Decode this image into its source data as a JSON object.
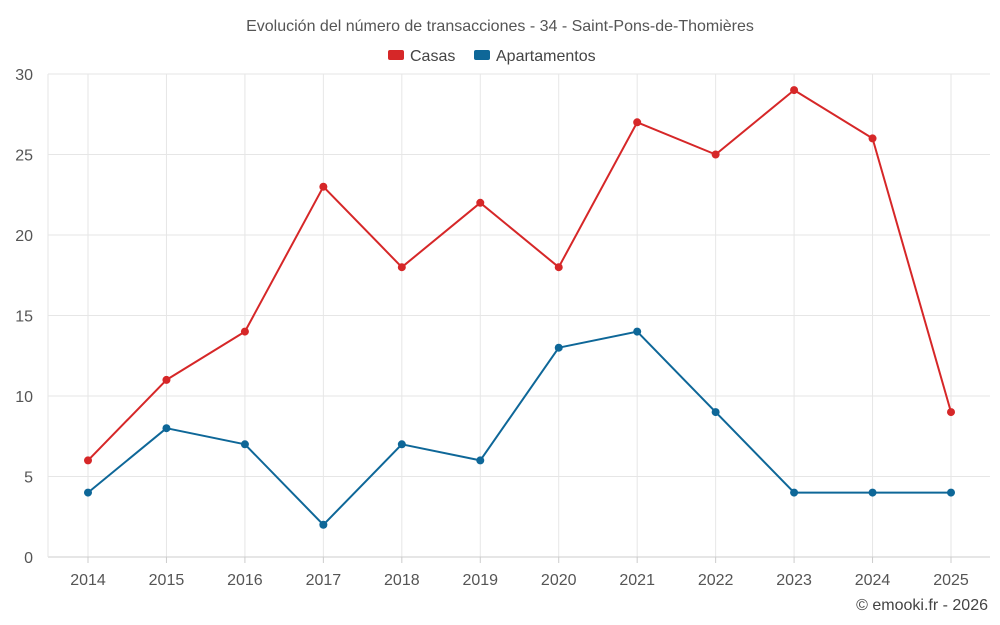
{
  "chart_data": {
    "type": "line",
    "title": "Evolución del número de transacciones - 34 - Saint-Pons-de-Thomières",
    "xlabel": "",
    "ylabel": "",
    "x": [
      "2014",
      "2015",
      "2016",
      "2017",
      "2018",
      "2019",
      "2020",
      "2021",
      "2022",
      "2023",
      "2024",
      "2025"
    ],
    "ylim": [
      0,
      30
    ],
    "yticks": [
      "0",
      "5",
      "10",
      "15",
      "20",
      "25",
      "30"
    ],
    "grid": true,
    "legend_position": "top-center",
    "series": [
      {
        "name": "Casas",
        "color": "#d62728",
        "values": [
          6,
          11,
          14,
          23,
          18,
          22,
          18,
          27,
          25,
          29,
          26,
          9
        ]
      },
      {
        "name": "Apartamentos",
        "color": "#0e6798",
        "values": [
          4,
          8,
          7,
          2,
          7,
          6,
          13,
          14,
          9,
          4,
          4,
          4
        ]
      }
    ]
  },
  "footer": {
    "credit": "© emooki.fr - 2026"
  }
}
